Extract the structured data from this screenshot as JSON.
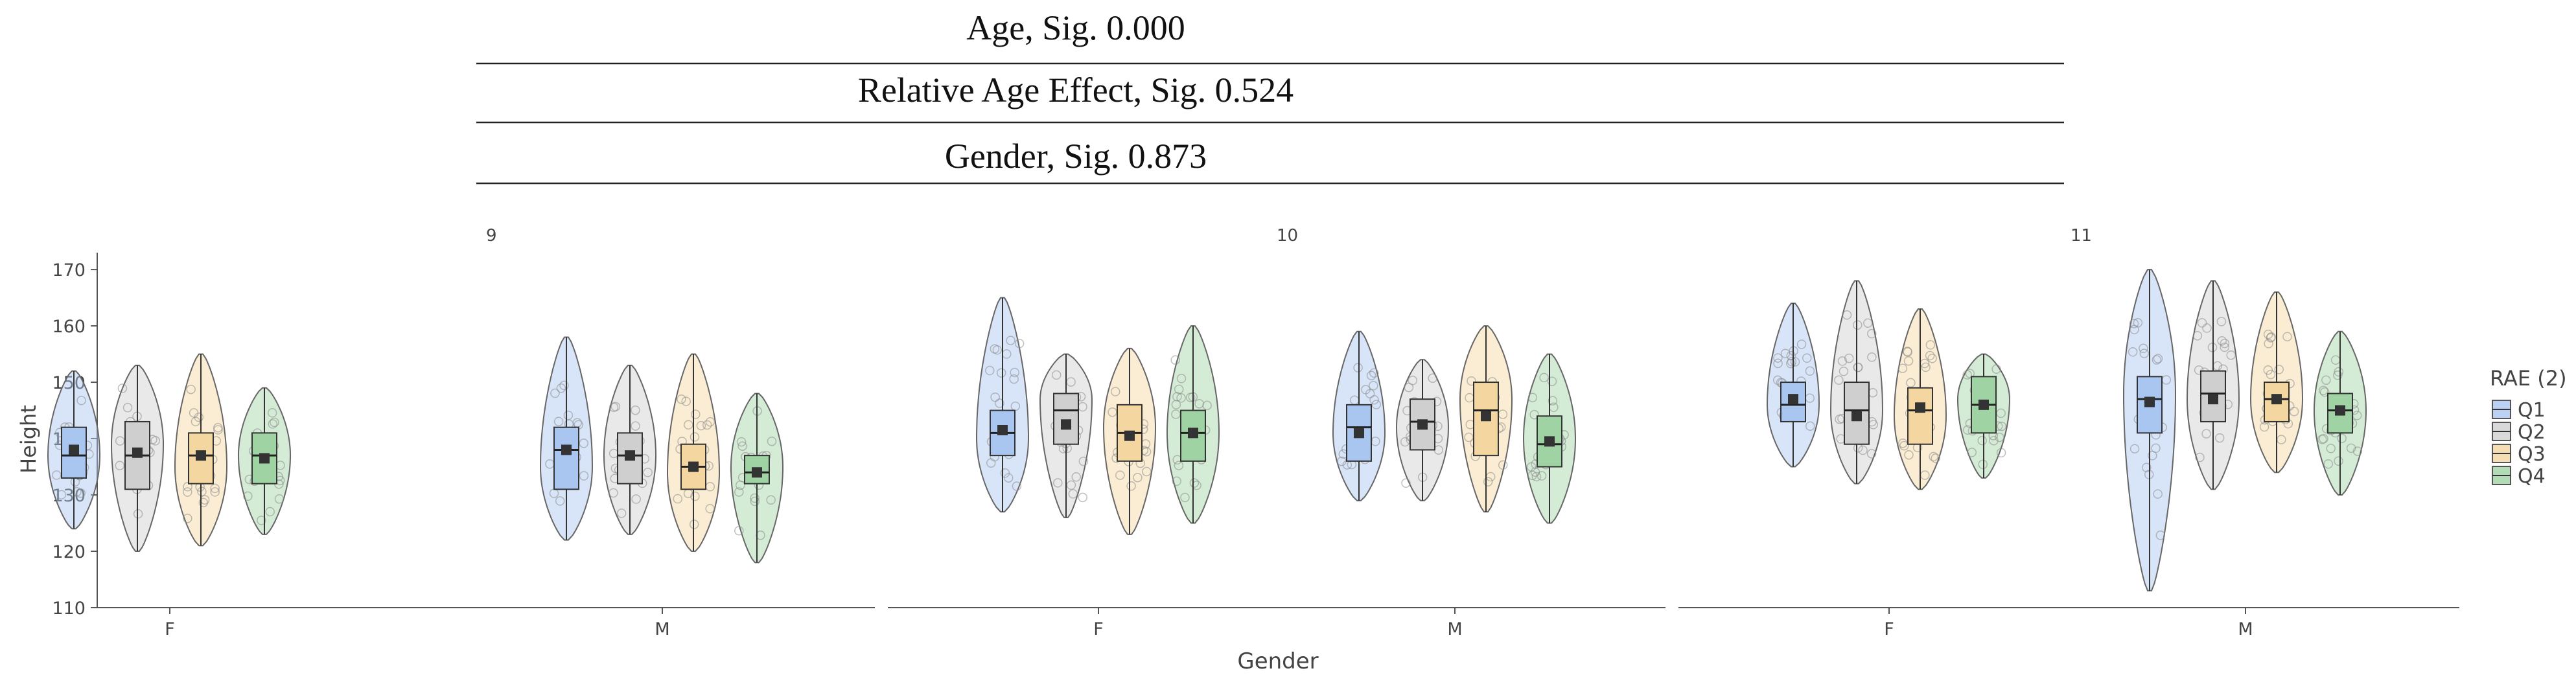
{
  "header_rows": [
    "Age, Sig. 0.000",
    "Relative Age Effect, Sig. 0.524",
    "Gender, Sig. 0.873"
  ],
  "colors": {
    "Q1": "#a9c6f0",
    "Q2": "#cfcfcf",
    "Q3": "#f3d6a0",
    "Q4": "#9fd3a4",
    "outline": "#666666",
    "mean": "#333333",
    "axis": "#555555",
    "text": "#444444",
    "points": "#8a8a8a"
  },
  "chart_data": {
    "type": "violin",
    "title": "",
    "xlabel": "Gender",
    "ylabel": "Height",
    "ylim": [
      110,
      173
    ],
    "yticks": [
      110,
      120,
      130,
      140,
      150,
      160,
      170
    ],
    "facets": [
      "9",
      "10",
      "11"
    ],
    "categories": [
      "F",
      "M"
    ],
    "legend": {
      "title": "RAE (2)",
      "entries": [
        "Q1",
        "Q2",
        "Q3",
        "Q4"
      ],
      "position": "right"
    },
    "groups": [
      {
        "facet": "9",
        "gender": "F",
        "quartile": "Q1",
        "min": 124,
        "max": 152,
        "q1": 133,
        "median": 137,
        "q3": 142,
        "mean": 138,
        "mode": 137
      },
      {
        "facet": "9",
        "gender": "F",
        "quartile": "Q2",
        "min": 120,
        "max": 153,
        "q1": 131,
        "median": 137,
        "q3": 143,
        "mean": 137.5,
        "mode": 139
      },
      {
        "facet": "9",
        "gender": "F",
        "quartile": "Q3",
        "min": 121,
        "max": 155,
        "q1": 132,
        "median": 137,
        "q3": 141,
        "mean": 137,
        "mode": 135
      },
      {
        "facet": "9",
        "gender": "F",
        "quartile": "Q4",
        "min": 123,
        "max": 149,
        "q1": 132,
        "median": 137,
        "q3": 141,
        "mean": 136.5,
        "mode": 137
      },
      {
        "facet": "9",
        "gender": "M",
        "quartile": "Q1",
        "min": 122,
        "max": 158,
        "q1": 131,
        "median": 138,
        "q3": 142,
        "mean": 138,
        "mode": 135
      },
      {
        "facet": "9",
        "gender": "M",
        "quartile": "Q2",
        "min": 123,
        "max": 153,
        "q1": 132,
        "median": 137,
        "q3": 141,
        "mean": 137,
        "mode": 137
      },
      {
        "facet": "9",
        "gender": "M",
        "quartile": "Q3",
        "min": 120,
        "max": 155,
        "q1": 131,
        "median": 135,
        "q3": 139,
        "mean": 135,
        "mode": 134
      },
      {
        "facet": "9",
        "gender": "M",
        "quartile": "Q4",
        "min": 118,
        "max": 148,
        "q1": 132,
        "median": 134,
        "q3": 137,
        "mean": 134,
        "mode": 135
      },
      {
        "facet": "10",
        "gender": "F",
        "quartile": "Q1",
        "min": 127,
        "max": 165,
        "q1": 137,
        "median": 141,
        "q3": 145,
        "mean": 141.5,
        "mode": 140
      },
      {
        "facet": "10",
        "gender": "F",
        "quartile": "Q2",
        "min": 126,
        "max": 155,
        "q1": 139,
        "median": 145,
        "q3": 148,
        "mean": 142.5,
        "mode": 147
      },
      {
        "facet": "10",
        "gender": "F",
        "quartile": "Q3",
        "min": 123,
        "max": 156,
        "q1": 136,
        "median": 141,
        "q3": 146,
        "mean": 140.5,
        "mode": 142
      },
      {
        "facet": "10",
        "gender": "F",
        "quartile": "Q4",
        "min": 125,
        "max": 160,
        "q1": 136,
        "median": 141,
        "q3": 145,
        "mean": 141,
        "mode": 141
      },
      {
        "facet": "10",
        "gender": "M",
        "quartile": "Q1",
        "min": 129,
        "max": 159,
        "q1": 136,
        "median": 142,
        "q3": 146,
        "mean": 141,
        "mode": 141
      },
      {
        "facet": "10",
        "gender": "M",
        "quartile": "Q2",
        "min": 129,
        "max": 154,
        "q1": 138,
        "median": 143,
        "q3": 147,
        "mean": 142.5,
        "mode": 142
      },
      {
        "facet": "10",
        "gender": "M",
        "quartile": "Q3",
        "min": 127,
        "max": 160,
        "q1": 137,
        "median": 145,
        "q3": 150,
        "mean": 144,
        "mode": 147
      },
      {
        "facet": "10",
        "gender": "M",
        "quartile": "Q4",
        "min": 125,
        "max": 155,
        "q1": 135,
        "median": 139,
        "q3": 144,
        "mean": 139.5,
        "mode": 140
      },
      {
        "facet": "11",
        "gender": "F",
        "quartile": "Q1",
        "min": 135,
        "max": 164,
        "q1": 143,
        "median": 146,
        "q3": 150,
        "mean": 147,
        "mode": 146
      },
      {
        "facet": "11",
        "gender": "F",
        "quartile": "Q2",
        "min": 132,
        "max": 168,
        "q1": 139,
        "median": 145,
        "q3": 150,
        "mean": 144,
        "mode": 145
      },
      {
        "facet": "11",
        "gender": "F",
        "quartile": "Q3",
        "min": 131,
        "max": 163,
        "q1": 139,
        "median": 145,
        "q3": 149,
        "mean": 145.5,
        "mode": 144
      },
      {
        "facet": "11",
        "gender": "F",
        "quartile": "Q4",
        "min": 133,
        "max": 155,
        "q1": 141,
        "median": 146,
        "q3": 151,
        "mean": 146,
        "mode": 147
      },
      {
        "facet": "11",
        "gender": "M",
        "quartile": "Q1",
        "min": 113,
        "max": 170,
        "q1": 141,
        "median": 147,
        "q3": 151,
        "mean": 146.5,
        "mode": 148
      },
      {
        "facet": "11",
        "gender": "M",
        "quartile": "Q2",
        "min": 131,
        "max": 168,
        "q1": 143,
        "median": 148,
        "q3": 152,
        "mean": 147,
        "mode": 147
      },
      {
        "facet": "11",
        "gender": "M",
        "quartile": "Q3",
        "min": 134,
        "max": 166,
        "q1": 143,
        "median": 147,
        "q3": 150,
        "mean": 147,
        "mode": 147
      },
      {
        "facet": "11",
        "gender": "M",
        "quartile": "Q4",
        "min": 130,
        "max": 159,
        "q1": 141,
        "median": 145,
        "q3": 148,
        "mean": 145,
        "mode": 145
      }
    ]
  }
}
